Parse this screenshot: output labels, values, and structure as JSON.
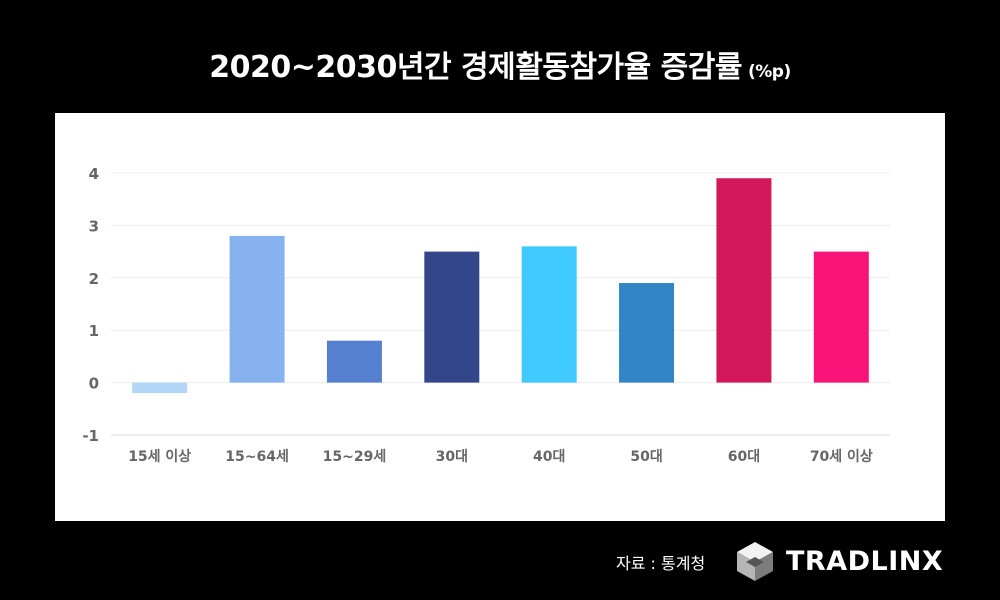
{
  "title": "2020~2030년간 경제활동참가율 증감률",
  "unit": "(%p)",
  "source": "자료 : 통계청",
  "brand": "TRADLINX",
  "chart_data": {
    "type": "bar",
    "categories": [
      "15세 이상",
      "15~64세",
      "15~29세",
      "30대",
      "40대",
      "50대",
      "60대",
      "70세 이상"
    ],
    "values": [
      -0.2,
      2.8,
      0.8,
      2.5,
      2.6,
      1.9,
      3.9,
      2.5
    ],
    "colors": [
      "#b3d6f7",
      "#86b2ef",
      "#5580cf",
      "#33468a",
      "#40caff",
      "#3285c4",
      "#d3175b",
      "#fa1379"
    ],
    "yticks": [
      "4",
      "3",
      "2",
      "1",
      "0",
      "-1"
    ],
    "ylim": [
      -1,
      4
    ],
    "grid": true
  }
}
